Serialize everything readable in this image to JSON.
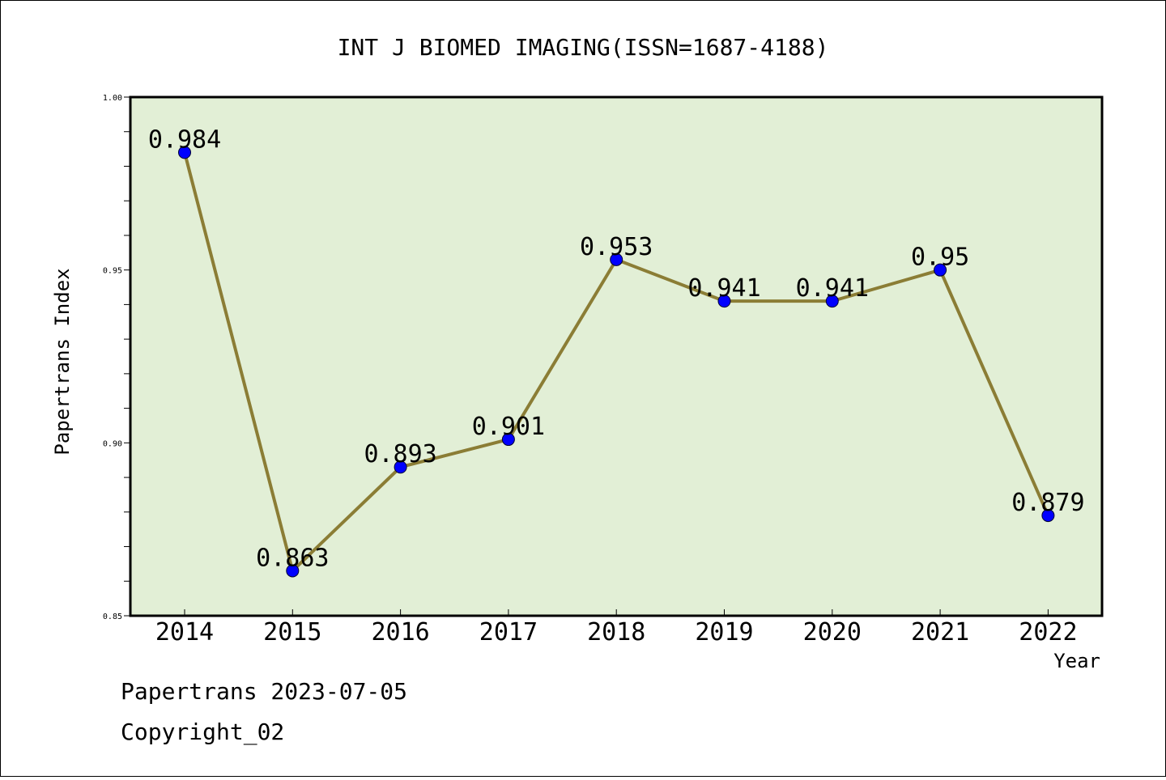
{
  "chart_data": {
    "type": "line",
    "title": "INT J BIOMED IMAGING(ISSN=1687-4188)",
    "xlabel": "Year",
    "ylabel": "Papertrans Index",
    "categories": [
      "2014",
      "2015",
      "2016",
      "2017",
      "2018",
      "2019",
      "2020",
      "2021",
      "2022"
    ],
    "values": [
      0.984,
      0.863,
      0.893,
      0.901,
      0.953,
      0.941,
      0.941,
      0.95,
      0.879
    ],
    "value_labels": [
      "0.984",
      "0.863",
      "0.893",
      "0.901",
      "0.953",
      "0.941",
      "0.941",
      "0.95",
      "0.879"
    ],
    "ylim": [
      0.85,
      1.0
    ],
    "y_ticks": [
      "0.85",
      "0.90",
      "0.95",
      "1.00"
    ],
    "grid": false,
    "colors": {
      "plot_background": "#e2efd6",
      "line": "#8b7d35",
      "marker": "#0000ff"
    }
  },
  "footer": {
    "line1": "Papertrans 2023-07-05",
    "line2": "Copyright_02"
  }
}
